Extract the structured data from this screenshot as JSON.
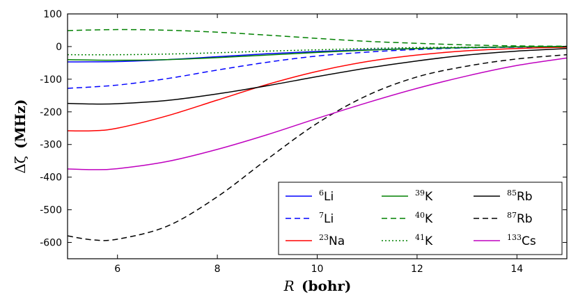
{
  "chart_data": {
    "type": "line",
    "title": "",
    "xlabel_symbol": "R",
    "xlabel_unit": "(bohr)",
    "ylabel_symbol": "Δζ",
    "ylabel_unit": "(MHz)",
    "xlim": [
      5,
      15
    ],
    "ylim": [
      -650,
      100
    ],
    "xticks": [
      6,
      8,
      10,
      12,
      14
    ],
    "yticks": [
      100,
      0,
      -100,
      -200,
      -300,
      -400,
      -500,
      -600
    ],
    "legend_position": "lower-right",
    "series": [
      {
        "name": "6Li",
        "mass": "6",
        "element": "Li",
        "color": "#0000ff",
        "dash": "solid",
        "x": [
          5,
          6,
          7,
          8,
          9,
          10,
          11,
          12,
          13,
          14,
          15
        ],
        "y": [
          -47,
          -46,
          -40,
          -31,
          -22,
          -15,
          -10,
          -6,
          -3,
          -1,
          0
        ]
      },
      {
        "name": "7Li",
        "mass": "7",
        "element": "Li",
        "color": "#0000ff",
        "dash": "dashed",
        "x": [
          5,
          6,
          7,
          8,
          9,
          10,
          11,
          12,
          13,
          14,
          15
        ],
        "y": [
          -128,
          -118,
          -98,
          -72,
          -48,
          -29,
          -17,
          -9,
          -4,
          -2,
          0
        ]
      },
      {
        "name": "23Na",
        "mass": "23",
        "element": "Na",
        "color": "#ff0000",
        "dash": "solid",
        "x": [
          5,
          5.5,
          6,
          7,
          8,
          9,
          10,
          11,
          12,
          13,
          14,
          15
        ],
        "y": [
          -258,
          -258,
          -250,
          -212,
          -164,
          -116,
          -76,
          -46,
          -26,
          -13,
          -6,
          -2
        ]
      },
      {
        "name": "39K",
        "mass": "39",
        "element": "K",
        "color": "#008000",
        "dash": "solid",
        "x": [
          5,
          6,
          7,
          8,
          9,
          10,
          11,
          12,
          13,
          14,
          15
        ],
        "y": [
          -40,
          -42,
          -40,
          -34,
          -26,
          -18,
          -11,
          -6,
          -3,
          -1,
          0
        ]
      },
      {
        "name": "40K",
        "mass": "40",
        "element": "K",
        "color": "#008000",
        "dash": "dashed",
        "x": [
          5,
          6,
          7,
          8,
          9,
          10,
          11,
          12,
          13,
          14,
          15
        ],
        "y": [
          49,
          52,
          50,
          44,
          35,
          25,
          16,
          10,
          5,
          2,
          1
        ]
      },
      {
        "name": "41K",
        "mass": "41",
        "element": "K",
        "color": "#008000",
        "dash": "dotted",
        "x": [
          5,
          6,
          7,
          8,
          9,
          10,
          11,
          12,
          13,
          14,
          15
        ],
        "y": [
          -25,
          -25,
          -23,
          -19,
          -14,
          -10,
          -6,
          -3,
          -2,
          -1,
          0
        ]
      },
      {
        "name": "85Rb",
        "mass": "85",
        "element": "Rb",
        "color": "#000000",
        "dash": "solid",
        "x": [
          5,
          5.5,
          6,
          7,
          8,
          9,
          10,
          11,
          12,
          13,
          14,
          15
        ],
        "y": [
          -174,
          -176,
          -175,
          -165,
          -145,
          -120,
          -92,
          -66,
          -44,
          -26,
          -14,
          -6
        ]
      },
      {
        "name": "87Rb",
        "mass": "87",
        "element": "Rb",
        "color": "#000000",
        "dash": "dashed",
        "x": [
          5,
          5.5,
          6,
          7,
          8,
          9,
          10,
          11,
          12,
          13,
          14,
          15
        ],
        "y": [
          -580,
          -592,
          -590,
          -550,
          -460,
          -345,
          -235,
          -150,
          -93,
          -60,
          -38,
          -25
        ]
      },
      {
        "name": "133Cs",
        "mass": "133",
        "element": "Cs",
        "color": "#bf00bf",
        "dash": "solid",
        "x": [
          5,
          5.5,
          6,
          7,
          8,
          9,
          10,
          11,
          12,
          13,
          14,
          15
        ],
        "y": [
          -375,
          -377,
          -374,
          -352,
          -315,
          -270,
          -220,
          -172,
          -128,
          -90,
          -58,
          -35
        ]
      }
    ]
  }
}
